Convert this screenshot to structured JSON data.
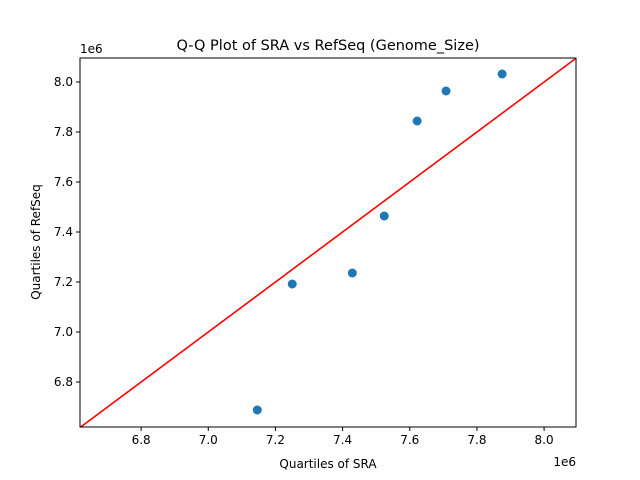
{
  "chart_data": {
    "type": "scatter",
    "title": "Q-Q Plot of SRA vs RefSeq (Genome_Size)",
    "xlabel": "Quartiles of SRA",
    "ylabel": "Quartiles of RefSeq",
    "x_offset_label": "1e6",
    "y_offset_label": "1e6",
    "xlim": [
      6.618,
      8.095
    ],
    "ylim": [
      6.62,
      8.096
    ],
    "xticks": [
      6.8,
      7.0,
      7.2,
      7.4,
      7.6,
      7.8,
      8.0
    ],
    "xtick_labels": [
      "6.8",
      "7.0",
      "7.2",
      "7.4",
      "7.6",
      "7.8",
      "8.0"
    ],
    "yticks": [
      6.8,
      7.0,
      7.2,
      7.4,
      7.6,
      7.8,
      8.0
    ],
    "ytick_labels": [
      "6.8",
      "7.0",
      "7.2",
      "7.4",
      "7.6",
      "7.8",
      "8.0"
    ],
    "grid": false,
    "series": [
      {
        "x": [
          7.146,
          7.25,
          7.429,
          7.524,
          7.622,
          7.708,
          7.875
        ],
        "y": [
          6.688,
          7.192,
          7.236,
          7.464,
          7.844,
          7.964,
          8.032
        ],
        "color": "#1f77b4"
      }
    ],
    "reference_line": {
      "type": "y=x",
      "color": "#ff0000"
    }
  }
}
